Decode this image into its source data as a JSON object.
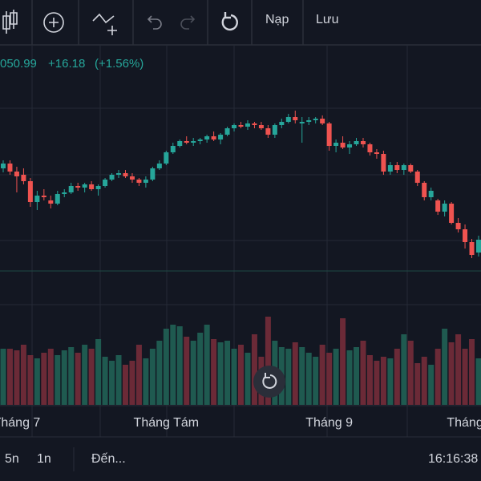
{
  "toolbar": {
    "load": "Nạp",
    "save": "Lưu"
  },
  "header": {
    "price": "050.99",
    "change": "+16.18",
    "change_pct": "(+1.56%)"
  },
  "chart_data": {
    "type": "candlestick",
    "categories": [
      null,
      null,
      "Tháng 7",
      null,
      null,
      null,
      null,
      null,
      null,
      null,
      null,
      null,
      null,
      null,
      null,
      null,
      null,
      null,
      null,
      null,
      null,
      null,
      null,
      null,
      "Tháng Tám",
      null,
      null,
      null,
      null,
      null,
      null,
      null,
      null,
      null,
      null,
      null,
      null,
      null,
      null,
      null,
      null,
      null,
      null,
      null,
      null,
      null,
      null,
      null,
      "Tháng 9",
      null,
      null,
      null,
      null,
      null,
      null,
      null,
      null,
      null,
      null,
      null,
      null,
      null,
      null,
      null,
      null,
      null,
      null,
      null,
      "Tháng",
      null,
      null
    ],
    "open": [
      1140,
      1146,
      1136,
      1132,
      1124,
      1098,
      1106,
      1100,
      1096,
      1108,
      1110,
      1118,
      1116,
      1120,
      1114,
      1118,
      1126,
      1132,
      1134,
      1130,
      1126,
      1122,
      1126,
      1140,
      1146,
      1160,
      1168,
      1174,
      1172,
      1174,
      1176,
      1180,
      1176,
      1182,
      1190,
      1194,
      1192,
      1196,
      1194,
      1190,
      1182,
      1194,
      1198,
      1204,
      1196,
      1198,
      1200,
      1202,
      1196,
      1168,
      1172,
      1166,
      1170,
      1174,
      1170,
      1160,
      1158,
      1136,
      1144,
      1138,
      1144,
      1136,
      1122,
      1104,
      1100,
      1086,
      1096,
      1072,
      1064,
      1048,
      1035
    ],
    "high": [
      1150,
      1150,
      1142,
      1140,
      1128,
      1112,
      1114,
      1106,
      1112,
      1114,
      1122,
      1122,
      1122,
      1124,
      1120,
      1128,
      1134,
      1138,
      1138,
      1134,
      1128,
      1130,
      1142,
      1150,
      1162,
      1172,
      1176,
      1180,
      1178,
      1178,
      1182,
      1186,
      1184,
      1192,
      1196,
      1198,
      1200,
      1198,
      1198,
      1194,
      1196,
      1202,
      1208,
      1212,
      1204,
      1204,
      1204,
      1206,
      1198,
      1176,
      1180,
      1174,
      1178,
      1178,
      1172,
      1164,
      1162,
      1148,
      1148,
      1146,
      1146,
      1138,
      1124,
      1116,
      1102,
      1100,
      1098,
      1078,
      1070,
      1052,
      1056
    ],
    "low": [
      1135,
      1132,
      1110,
      1120,
      1092,
      1088,
      1100,
      1090,
      1094,
      1104,
      1108,
      1112,
      1110,
      1112,
      1106,
      1116,
      1124,
      1128,
      1128,
      1122,
      1118,
      1116,
      1124,
      1138,
      1144,
      1158,
      1166,
      1170,
      1168,
      1170,
      1172,
      1174,
      1170,
      1180,
      1186,
      1190,
      1188,
      1190,
      1188,
      1178,
      1178,
      1190,
      1196,
      1196,
      1172,
      1194,
      1196,
      1194,
      1162,
      1160,
      1164,
      1158,
      1168,
      1166,
      1156,
      1152,
      1132,
      1132,
      1134,
      1132,
      1134,
      1118,
      1100,
      1100,
      1082,
      1080,
      1070,
      1060,
      1040,
      1028,
      1030
    ],
    "close": [
      1146,
      1136,
      1130,
      1124,
      1098,
      1106,
      1104,
      1096,
      1108,
      1110,
      1118,
      1116,
      1120,
      1114,
      1118,
      1126,
      1132,
      1134,
      1130,
      1126,
      1122,
      1126,
      1140,
      1146,
      1160,
      1168,
      1174,
      1172,
      1174,
      1176,
      1180,
      1176,
      1182,
      1190,
      1194,
      1192,
      1196,
      1194,
      1190,
      1182,
      1194,
      1198,
      1204,
      1200,
      1198,
      1200,
      1202,
      1196,
      1168,
      1172,
      1166,
      1170,
      1174,
      1170,
      1160,
      1158,
      1136,
      1144,
      1138,
      1144,
      1136,
      1122,
      1104,
      1112,
      1086,
      1096,
      1072,
      1064,
      1048,
      1032,
      1051
    ],
    "volume": [
      70,
      70,
      68,
      75,
      62,
      58,
      65,
      70,
      62,
      68,
      72,
      65,
      75,
      70,
      82,
      60,
      55,
      62,
      50,
      55,
      75,
      58,
      70,
      80,
      95,
      100,
      98,
      85,
      80,
      90,
      100,
      82,
      78,
      80,
      70,
      75,
      65,
      88,
      60,
      110,
      80,
      72,
      70,
      78,
      72,
      65,
      60,
      75,
      65,
      70,
      108,
      68,
      72,
      80,
      62,
      55,
      60,
      58,
      70,
      88,
      80,
      52,
      60,
      50,
      70,
      95,
      78,
      88,
      70,
      82,
      58
    ],
    "ylim": [
      950,
      1292
    ],
    "volume_lim": [
      0,
      120
    ],
    "up_color": "#26a69a",
    "down_color": "#ef5350",
    "volume_up_color": "#1f5a50",
    "volume_down_color": "#6b2a37"
  },
  "footer": {
    "range_5d": "5n",
    "range_1d": "1n",
    "goto": "Đến...",
    "time": "16:16:38"
  }
}
